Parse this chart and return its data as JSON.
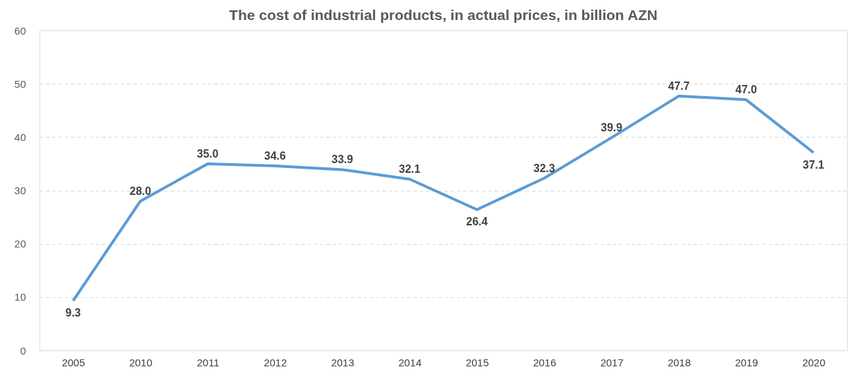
{
  "chart_data": {
    "type": "line",
    "title": "The cost of industrial products, in actual prices, in billion AZN",
    "categories": [
      "2005",
      "2010",
      "2011",
      "2012",
      "2013",
      "2014",
      "2015",
      "2016",
      "2017",
      "2018",
      "2019",
      "2020"
    ],
    "series": [
      {
        "color": "#5b9bd5",
        "values": [
          9.3,
          28.0,
          35.0,
          34.6,
          33.9,
          32.1,
          26.4,
          32.3,
          39.9,
          47.7,
          47.0,
          37.1
        ],
        "value_labels": [
          "9.3",
          "28.0",
          "35.0",
          "34.6",
          "33.9",
          "32.1",
          "26.4",
          "32.3",
          "39.9",
          "47.7",
          "47.0",
          "37.1"
        ]
      }
    ],
    "ylim": [
      0,
      60
    ],
    "yticks": [
      0,
      10,
      20,
      30,
      40,
      50,
      60
    ],
    "grid": "y",
    "legend": false,
    "marker": "none",
    "line_style": "solid"
  }
}
